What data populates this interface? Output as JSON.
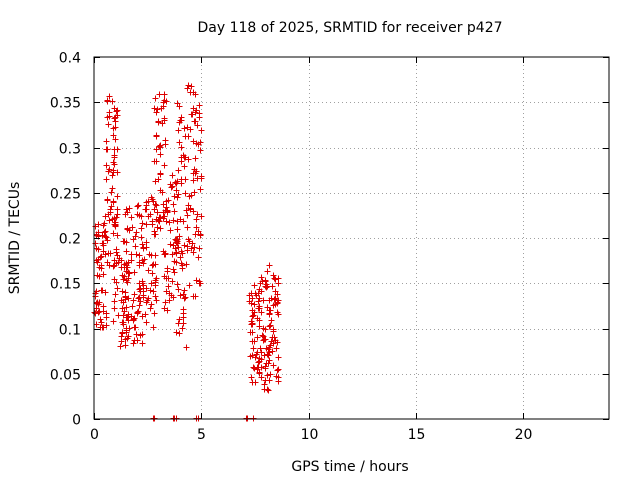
{
  "chart_data": {
    "type": "scatter",
    "title": "Day 118 of 2025, SRMTID for receiver p427",
    "xlabel": "GPS time / hours",
    "ylabel": "SRMTID / TECUs",
    "xlim": [
      0,
      24
    ],
    "ylim": [
      0,
      0.4
    ],
    "xticks": [
      0,
      5,
      10,
      15,
      20
    ],
    "xtick_labels": [
      "0",
      "5",
      "10",
      "15",
      "20"
    ],
    "yticks": [
      0,
      0.05,
      0.1,
      0.15,
      0.2,
      0.25,
      0.3,
      0.35,
      0.4
    ],
    "ytick_labels": [
      "0",
      "0.05",
      "0.1",
      "0.15",
      "0.2",
      "0.25",
      "0.3",
      "0.35",
      "0.4"
    ],
    "grid": true,
    "marker": "+",
    "color": "#dd0000",
    "clusters": [
      {
        "x_range": [
          0.0,
          0.55
        ],
        "y_range": [
          0.1,
          0.22
        ],
        "n": 60
      },
      {
        "x_range": [
          0.5,
          1.1
        ],
        "y_range": [
          0.17,
          0.36
        ],
        "n": 70
      },
      {
        "x_range": [
          0.9,
          1.6
        ],
        "y_range": [
          0.08,
          0.2
        ],
        "n": 55
      },
      {
        "x_range": [
          1.4,
          2.3
        ],
        "y_range": [
          0.08,
          0.24
        ],
        "n": 75
      },
      {
        "x_range": [
          2.2,
          2.9
        ],
        "y_range": [
          0.1,
          0.25
        ],
        "n": 55
      },
      {
        "x_range": [
          2.8,
          3.35
        ],
        "y_range": [
          0.2,
          0.36
        ],
        "n": 50
      },
      {
        "x_range": [
          3.2,
          3.9
        ],
        "y_range": [
          0.12,
          0.27
        ],
        "n": 55
      },
      {
        "x_range": [
          3.8,
          4.3
        ],
        "y_range": [
          0.08,
          0.35
        ],
        "n": 55
      },
      {
        "x_range": [
          4.2,
          5.0
        ],
        "y_range": [
          0.13,
          0.37
        ],
        "n": 75
      },
      {
        "x_range": [
          7.2,
          7.7
        ],
        "y_range": [
          0.04,
          0.15
        ],
        "n": 45
      },
      {
        "x_range": [
          7.6,
          8.2
        ],
        "y_range": [
          0.03,
          0.17
        ],
        "n": 55
      },
      {
        "x_range": [
          8.1,
          8.6
        ],
        "y_range": [
          0.04,
          0.16
        ],
        "n": 45
      }
    ],
    "zero_points_x": [
      2.75,
      2.8,
      3.7,
      3.75,
      3.8,
      4.75,
      4.85,
      7.1,
      7.15,
      7.4
    ]
  }
}
